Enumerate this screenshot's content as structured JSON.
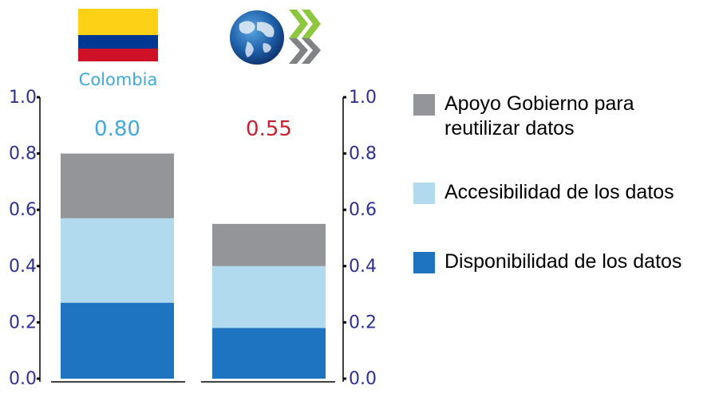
{
  "chart_data": {
    "type": "bar",
    "stacked": true,
    "categories": [
      "Colombia",
      ""
    ],
    "category_logos": [
      "colombia-flag",
      "oecd-logo"
    ],
    "series": [
      {
        "name": "Disponibilidad de los datos",
        "values": [
          0.27,
          0.18
        ],
        "color": "#1f74c1"
      },
      {
        "name": "Accesibilidad de los datos",
        "values": [
          0.3,
          0.22
        ],
        "color": "#b1daee"
      },
      {
        "name": "Apoyo Gobierno para reutilizar datos",
        "values": [
          0.23,
          0.15
        ],
        "color": "#939598"
      }
    ],
    "totals": [
      "0.80",
      "0.55"
    ],
    "total_colors": [
      "#3fa9dc",
      "#c8202f"
    ],
    "country_label_color": "#3fa9dc",
    "ylim": [
      0,
      1.0
    ],
    "yticks": [
      "0.0",
      "0.2",
      "0.4",
      "0.6",
      "0.8",
      "1.0"
    ],
    "axis_color": "#2e3192",
    "grid": false,
    "legend": {
      "position": "right",
      "items": [
        {
          "lines": [
            "Apoyo Gobierno para",
            "reutilizar datos"
          ],
          "color": "#939598"
        },
        {
          "lines": [
            "Accesibilidad de los datos"
          ],
          "color": "#b1daee"
        },
        {
          "lines": [
            "Disponibilidad de los datos"
          ],
          "color": "#1f74c1"
        }
      ]
    },
    "title": "",
    "xlabel": "",
    "ylabel": ""
  }
}
